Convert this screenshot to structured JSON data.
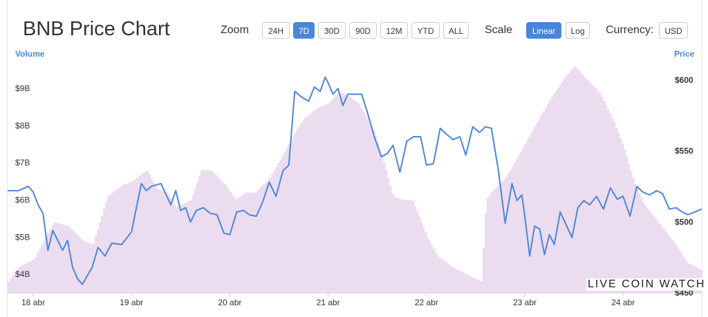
{
  "chart_title": "BNB Price Chart",
  "toolbar": {
    "zoom_label": "Zoom",
    "zoom_options": [
      "24H",
      "7D",
      "30D",
      "90D",
      "12M",
      "YTD",
      "ALL"
    ],
    "zoom_selected": "7D",
    "scale_label": "Scale",
    "scale_options": [
      "Linear",
      "Log"
    ],
    "scale_selected": "Linear",
    "currency_label": "Currency:",
    "currency_value": "USD"
  },
  "watermark": "LIVE COIN WATCH",
  "colors": {
    "price_line": "#4a86d8",
    "volume_fill": "#ecdcf0",
    "accent": "#4a86d8"
  },
  "chart_data": {
    "type": "line",
    "title": "BNB Price Chart",
    "grid": false,
    "x_tick_labels": [
      "18 abr",
      "19 abr",
      "20 abr",
      "21 abr",
      "22 abr",
      "23 abr",
      "24 abr"
    ],
    "x_range_days": [
      -0.26,
      6.8
    ],
    "y_left": {
      "label": "Volume",
      "unit": "USD",
      "ticks": [
        "$4B",
        "$5B",
        "$6B",
        "$7B",
        "$8B",
        "$9B"
      ],
      "tick_values": [
        4,
        5,
        6,
        7,
        8,
        9
      ],
      "range": [
        3.5,
        9.8
      ]
    },
    "y_right": {
      "label": "Price",
      "unit": "USD",
      "ticks": [
        "$450",
        "$500",
        "$550",
        "$600"
      ],
      "tick_values": [
        450,
        500,
        550,
        600
      ],
      "range": [
        450,
        615
      ]
    },
    "series": [
      {
        "name": "Price",
        "axis": "right",
        "type": "line",
        "x": [
          -0.26,
          -0.15,
          -0.05,
          0.0,
          0.05,
          0.1,
          0.15,
          0.2,
          0.3,
          0.35,
          0.4,
          0.45,
          0.5,
          0.55,
          0.6,
          0.66,
          0.73,
          0.8,
          0.9,
          1.0,
          1.1,
          1.15,
          1.2,
          1.3,
          1.4,
          1.45,
          1.5,
          1.55,
          1.6,
          1.66,
          1.73,
          1.8,
          1.87,
          1.94,
          2.0,
          2.07,
          2.14,
          2.2,
          2.27,
          2.34,
          2.4,
          2.47,
          2.54,
          2.6,
          2.66,
          2.73,
          2.8,
          2.86,
          2.92,
          2.97,
          3.0,
          3.05,
          3.1,
          3.15,
          3.2,
          3.27,
          3.34,
          3.4,
          3.47,
          3.54,
          3.6,
          3.66,
          3.73,
          3.8,
          3.87,
          3.94,
          4.0,
          4.07,
          4.14,
          4.2,
          4.27,
          4.34,
          4.4,
          4.47,
          4.54,
          4.6,
          4.66,
          4.73,
          4.8,
          4.87,
          4.92,
          4.97,
          5.0,
          5.05,
          5.1,
          5.15,
          5.2,
          5.25,
          5.3,
          5.36,
          5.42,
          5.48,
          5.54,
          5.6,
          5.66,
          5.73,
          5.8,
          5.87,
          5.94,
          6.0,
          6.07,
          6.14,
          6.2,
          6.27,
          6.34,
          6.4,
          6.47,
          6.54,
          6.6,
          6.66,
          6.73,
          6.8
        ],
        "values": [
          522,
          522,
          525,
          521,
          512,
          506,
          480,
          494,
          480,
          487,
          468,
          460,
          456,
          462,
          468,
          482,
          476,
          485,
          484,
          493,
          527,
          522,
          525,
          527,
          512,
          522,
          508,
          510,
          500,
          508,
          510,
          506,
          505,
          492,
          491,
          507,
          508,
          505,
          504,
          515,
          528,
          518,
          536,
          540,
          592,
          588,
          585,
          595,
          592,
          602,
          598,
          590,
          594,
          582,
          590,
          590,
          590,
          577,
          560,
          546,
          548,
          554,
          535,
          557,
          560,
          560,
          540,
          541,
          566,
          562,
          558,
          560,
          547,
          567,
          563,
          567,
          566,
          537,
          499,
          527,
          515,
          519,
          504,
          476,
          497,
          495,
          477,
          491,
          484,
          507,
          498,
          489,
          510,
          515,
          512,
          518,
          509,
          524,
          516,
          518,
          504,
          525,
          521,
          519,
          522,
          520,
          509,
          510,
          507,
          505,
          507,
          509
        ]
      },
      {
        "name": "Volume",
        "axis": "left",
        "type": "area",
        "x": [
          -0.26,
          -0.15,
          0.0,
          0.2,
          0.35,
          0.5,
          0.6,
          0.75,
          0.9,
          1.0,
          1.15,
          1.25,
          1.35,
          1.45,
          1.6,
          1.7,
          1.8,
          1.95,
          2.05,
          2.15,
          2.25,
          2.4,
          2.55,
          2.65,
          2.75,
          2.9,
          3.0,
          3.1,
          3.2,
          3.3,
          3.45,
          3.55,
          3.65,
          3.75,
          3.85,
          4.0,
          4.1,
          4.25,
          4.4,
          4.55,
          4.6,
          4.65,
          4.8,
          4.95,
          5.1,
          5.25,
          5.4,
          5.5,
          5.6,
          5.75,
          5.9,
          6.0,
          6.1,
          6.2,
          6.35,
          6.5,
          6.65,
          6.8
        ],
        "values": [
          3.8,
          4.2,
          4.4,
          5.4,
          5.3,
          4.9,
          4.8,
          6.1,
          6.4,
          6.5,
          6.8,
          6.3,
          6.2,
          5.8,
          6.0,
          6.8,
          6.8,
          6.4,
          6.0,
          6.2,
          6.2,
          6.6,
          7.3,
          7.8,
          8.2,
          8.5,
          8.6,
          8.9,
          8.8,
          8.6,
          7.9,
          7.1,
          6.1,
          6.0,
          6.0,
          5.0,
          4.5,
          4.2,
          4.0,
          3.8,
          6.0,
          6.2,
          6.6,
          7.3,
          8.0,
          8.7,
          9.3,
          9.6,
          9.3,
          8.9,
          8.1,
          7.4,
          6.5,
          5.9,
          5.4,
          4.9,
          4.3,
          4.1
        ]
      }
    ]
  }
}
